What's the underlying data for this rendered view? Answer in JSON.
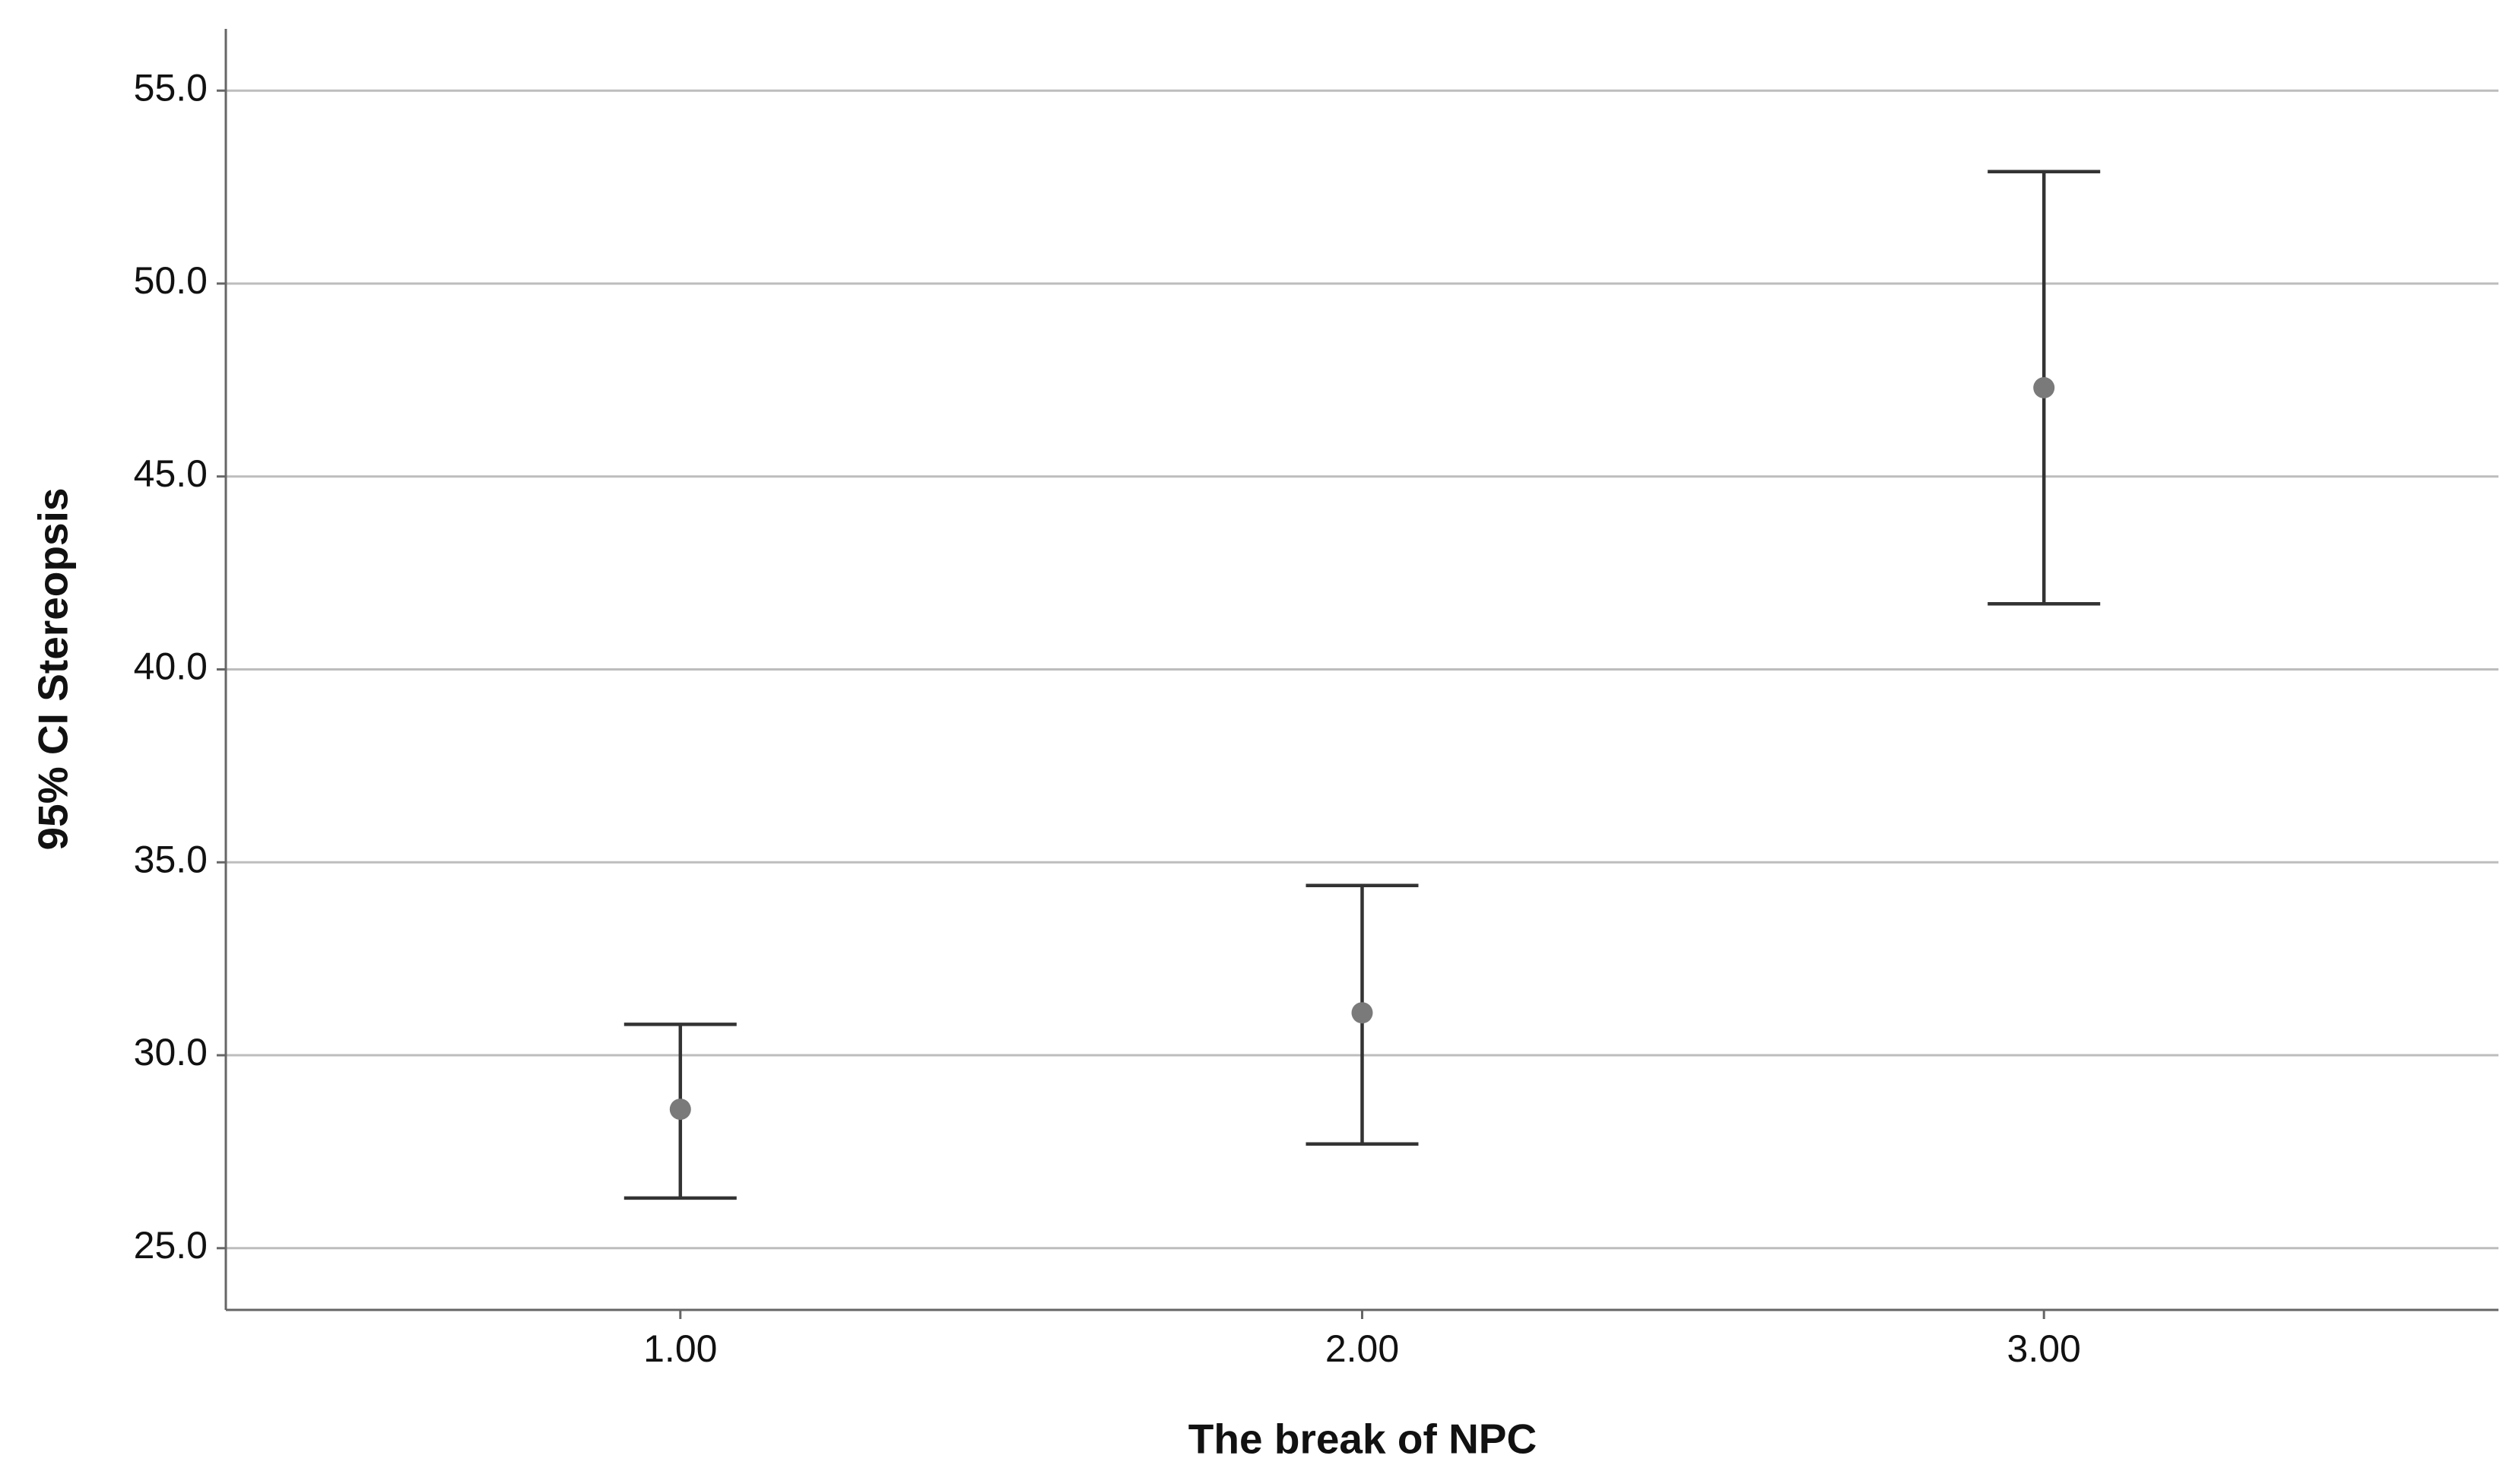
{
  "chart_data": {
    "type": "errorbar",
    "x_label": "The break of NPC",
    "y_label": "95% CI Stereopsis",
    "categories": [
      "1.00",
      "2.00",
      "3.00"
    ],
    "values": [
      28.6,
      31.1,
      47.3
    ],
    "ci_lower": [
      26.3,
      27.7,
      41.7
    ],
    "ci_upper": [
      30.8,
      34.4,
      52.9
    ],
    "point_color": "#7a7a7a",
    "bar_color": "#333333",
    "ylim": [
      23.4,
      56.6
    ],
    "yticks": [
      {
        "value": 25,
        "label": "25.0"
      },
      {
        "value": 30,
        "label": "30.0"
      },
      {
        "value": 35,
        "label": "35.0"
      },
      {
        "value": 40,
        "label": "40.0"
      },
      {
        "value": 45,
        "label": "45.0"
      },
      {
        "value": 50,
        "label": "50.0"
      },
      {
        "value": 55,
        "label": "55.0"
      }
    ],
    "grid": true
  }
}
